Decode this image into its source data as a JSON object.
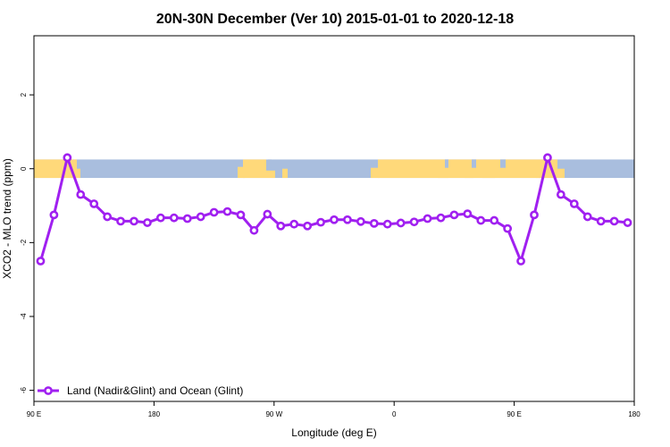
{
  "chart_data": {
    "type": "line",
    "title": "20N-30N December (Ver 10)   2015-01-01 to 2020-12-18",
    "xlabel": "Longitude (deg E)",
    "ylabel": "XCO2 - MLO trend (ppm)",
    "xlim": [
      90,
      540
    ],
    "ylim": [
      -6.3,
      3.6
    ],
    "x_ticks": [
      {
        "value": 90,
        "label": "90 E"
      },
      {
        "value": 180,
        "label": "180"
      },
      {
        "value": 270,
        "label": "90 W"
      },
      {
        "value": 360,
        "label": "0"
      },
      {
        "value": 450,
        "label": "90 E"
      },
      {
        "value": 540,
        "label": "180"
      }
    ],
    "y_ticks": [
      {
        "value": 2,
        "label": "2"
      },
      {
        "value": 0,
        "label": "0"
      },
      {
        "value": -2,
        "label": "-2"
      },
      {
        "value": -4,
        "label": "-4"
      },
      {
        "value": -6,
        "label": "-6"
      }
    ],
    "grid": false,
    "legend_position": "bottom-left",
    "map_band": {
      "y_range": [
        -0.25,
        0.25
      ],
      "land_color": "#FFD97A",
      "ocean_color": "#A9BEDE"
    },
    "series": [
      {
        "name": "Land (Nadir&Glint) and Ocean (Glint)",
        "color": "#A020F0",
        "x": [
          95,
          105,
          115,
          125,
          135,
          145,
          155,
          165,
          175,
          185,
          195,
          205,
          215,
          225,
          235,
          245,
          255,
          265,
          275,
          285,
          295,
          305,
          315,
          325,
          335,
          345,
          355,
          365,
          375,
          385,
          395,
          405,
          415,
          425,
          435,
          445,
          455,
          465,
          475,
          485,
          495,
          505,
          515,
          525,
          535
        ],
        "y": [
          -2.5,
          -1.25,
          0.3,
          -0.7,
          -0.95,
          -1.3,
          -1.42,
          -1.42,
          -1.46,
          -1.33,
          -1.33,
          -1.35,
          -1.3,
          -1.18,
          -1.16,
          -1.25,
          -1.67,
          -1.23,
          -1.55,
          -1.5,
          -1.55,
          -1.45,
          -1.38,
          -1.38,
          -1.43,
          -1.48,
          -1.5,
          -1.47,
          -1.44,
          -1.35,
          -1.33,
          -1.25,
          -1.22,
          -1.4,
          -1.4,
          -1.62,
          -2.5,
          -1.25,
          0.3,
          -0.7,
          -0.95,
          -1.3,
          -1.42,
          -1.42,
          -1.46
        ]
      }
    ]
  }
}
